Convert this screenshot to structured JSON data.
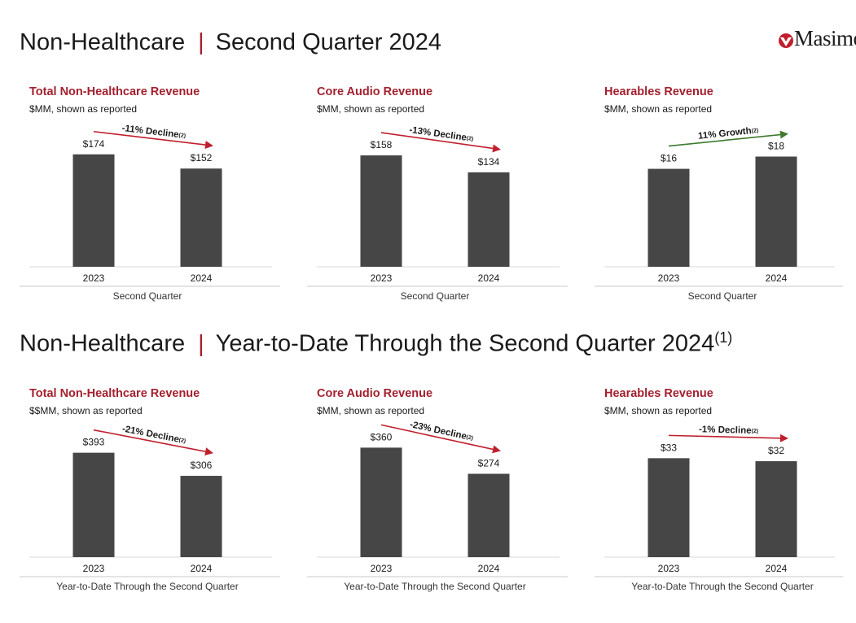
{
  "header": {
    "section1_left": "Non-Healthcare",
    "section1_right": "Second Quarter 2024",
    "section2_left": "Non-Healthcare",
    "section2_right": "Year-to-Date Through the Second Quarter 2024",
    "section2_footnote": "(1)",
    "logo_text": "Masimo"
  },
  "colors": {
    "bar": "#464646",
    "decline": "#c0202e",
    "growth": "#3d7a2e",
    "accent": "#a3202e"
  },
  "chart_data": [
    {
      "type": "bar",
      "title": "Total Non-Healthcare Revenue",
      "subtitle": "$MM, shown as reported",
      "categories": [
        "2023",
        "2024"
      ],
      "values": [
        174,
        152
      ],
      "value_labels": [
        "$174",
        "$152"
      ],
      "xlabel": "Second Quarter",
      "annotation": "-11% Decline",
      "annotation_sup": "(2)",
      "trend": "decline",
      "ylim": [
        0,
        180
      ]
    },
    {
      "type": "bar",
      "title": "Core Audio Revenue",
      "subtitle": "$MM, shown as reported",
      "categories": [
        "2023",
        "2024"
      ],
      "values": [
        158,
        134
      ],
      "value_labels": [
        "$158",
        "$134"
      ],
      "xlabel": "Second Quarter",
      "annotation": "-13% Decline",
      "annotation_sup": "(2)",
      "trend": "decline",
      "ylim": [
        0,
        165
      ]
    },
    {
      "type": "bar",
      "title": "Hearables Revenue",
      "subtitle": "$MM, shown as reported",
      "categories": [
        "2023",
        "2024"
      ],
      "values": [
        16,
        18
      ],
      "value_labels": [
        "$16",
        "$18"
      ],
      "xlabel": "Second Quarter",
      "annotation": "11% Growth",
      "annotation_sup": "(2)",
      "trend": "growth",
      "ylim": [
        0,
        19
      ]
    },
    {
      "type": "bar",
      "title": "Total Non-Healthcare Revenue",
      "subtitle": "$$MM, shown as reported",
      "categories": [
        "2023",
        "2024"
      ],
      "values": [
        393,
        306
      ],
      "value_labels": [
        "$393",
        "$306"
      ],
      "xlabel": "Year-to-Date Through the Second Quarter",
      "annotation": "-21% Decline",
      "annotation_sup": "(2)",
      "trend": "decline",
      "ylim": [
        0,
        395
      ]
    },
    {
      "type": "bar",
      "title": "Core Audio Revenue",
      "subtitle": "$MM, shown as reported",
      "categories": [
        "2023",
        "2024"
      ],
      "values": [
        360,
        274
      ],
      "value_labels": [
        "$360",
        "$274"
      ],
      "xlabel": "Year-to-Date Through the Second Quarter",
      "annotation": "-23% Decline",
      "annotation_sup": "(2)",
      "trend": "decline",
      "ylim": [
        0,
        345
      ]
    },
    {
      "type": "bar",
      "title": "Hearables Revenue",
      "subtitle": "$MM, shown as reported",
      "categories": [
        "2023",
        "2024"
      ],
      "values": [
        33,
        32
      ],
      "value_labels": [
        "$33",
        "$32"
      ],
      "xlabel": "Year-to-Date Through the Second Quarter",
      "annotation": "-1% Decline",
      "annotation_sup": "(2)",
      "trend": "decline",
      "ylim": [
        0,
        35
      ]
    }
  ]
}
